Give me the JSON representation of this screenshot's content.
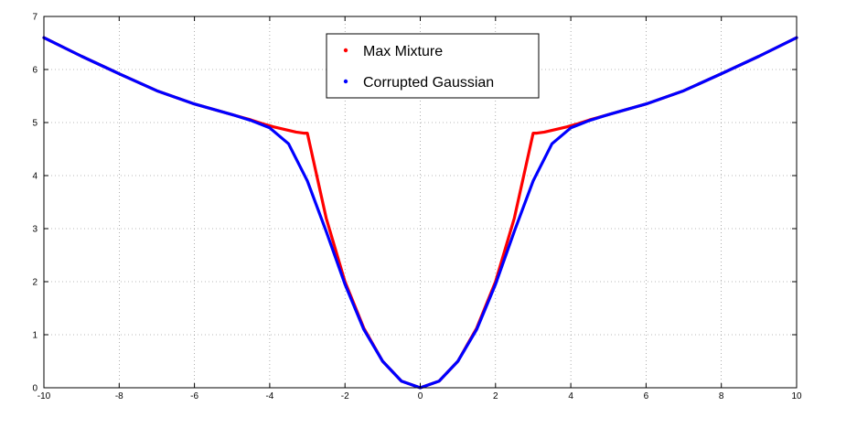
{
  "chart_data": {
    "type": "line",
    "title": "",
    "xlabel": "",
    "ylabel": "",
    "xlim": [
      -10,
      10
    ],
    "ylim": [
      0,
      7
    ],
    "xticks": [
      -10,
      -8,
      -6,
      -4,
      -2,
      0,
      2,
      4,
      6,
      8,
      10
    ],
    "yticks": [
      0,
      1,
      2,
      3,
      4,
      5,
      6,
      7
    ],
    "grid": true,
    "legend_position": "top-center",
    "series": [
      {
        "name": "Max Mixture",
        "color": "#ff0000",
        "x": [
          -10,
          -9,
          -8,
          -7,
          -6,
          -5,
          -4.5,
          -4.2,
          -3.9,
          -3.6,
          -3.3,
          -3.1,
          -3.0,
          -2.5,
          -2.0,
          -1.5,
          -1.0,
          -0.5,
          0,
          0.5,
          1.0,
          1.5,
          2.0,
          2.5,
          3.0,
          3.1,
          3.3,
          3.6,
          3.9,
          4.2,
          4.5,
          5,
          6,
          7,
          8,
          9,
          10
        ],
        "y": [
          6.6,
          6.25,
          5.92,
          5.6,
          5.35,
          5.15,
          5.05,
          4.98,
          4.92,
          4.87,
          4.82,
          4.8,
          4.8,
          3.2,
          2.0,
          1.125,
          0.5,
          0.125,
          0,
          0.125,
          0.5,
          1.125,
          2.0,
          3.2,
          4.8,
          4.8,
          4.82,
          4.87,
          4.92,
          4.98,
          5.05,
          5.15,
          5.35,
          5.6,
          5.92,
          6.25,
          6.6
        ]
      },
      {
        "name": "Corrupted Gaussian",
        "color": "#0000ff",
        "x": [
          -10,
          -9,
          -8,
          -7,
          -6,
          -5,
          -4.5,
          -4.0,
          -3.5,
          -3.0,
          -2.5,
          -2.0,
          -1.5,
          -1.0,
          -0.5,
          0,
          0.5,
          1.0,
          1.5,
          2.0,
          2.5,
          3.0,
          3.5,
          4.0,
          4.5,
          5,
          6,
          7,
          8,
          9,
          10
        ],
        "y": [
          6.6,
          6.25,
          5.92,
          5.6,
          5.35,
          5.15,
          5.04,
          4.9,
          4.6,
          3.9,
          2.95,
          1.95,
          1.1,
          0.5,
          0.125,
          0,
          0.125,
          0.5,
          1.1,
          1.95,
          2.95,
          3.9,
          4.6,
          4.9,
          5.04,
          5.15,
          5.35,
          5.6,
          5.92,
          6.25,
          6.6
        ]
      }
    ]
  }
}
